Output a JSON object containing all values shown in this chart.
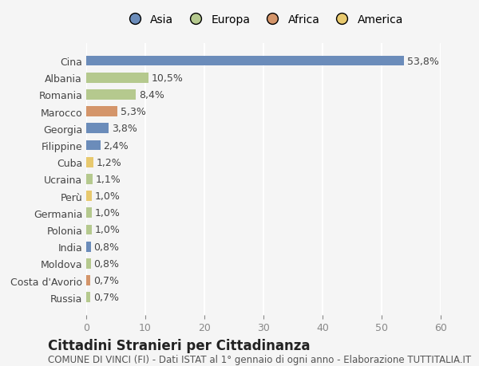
{
  "countries": [
    "Cina",
    "Albania",
    "Romania",
    "Marocco",
    "Georgia",
    "Filippine",
    "Cuba",
    "Ucraina",
    "Perù",
    "Germania",
    "Polonia",
    "India",
    "Moldova",
    "Costa d'Avorio",
    "Russia"
  ],
  "values": [
    53.8,
    10.5,
    8.4,
    5.3,
    3.8,
    2.4,
    1.2,
    1.1,
    1.0,
    1.0,
    1.0,
    0.8,
    0.8,
    0.7,
    0.7
  ],
  "labels": [
    "53,8%",
    "10,5%",
    "8,4%",
    "5,3%",
    "3,8%",
    "2,4%",
    "1,2%",
    "1,1%",
    "1,0%",
    "1,0%",
    "1,0%",
    "0,8%",
    "0,8%",
    "0,7%",
    "0,7%"
  ],
  "continents": [
    "Asia",
    "Europa",
    "Europa",
    "Africa",
    "Asia",
    "Asia",
    "America",
    "Europa",
    "America",
    "Europa",
    "Europa",
    "Asia",
    "Europa",
    "Africa",
    "Europa"
  ],
  "continent_colors": {
    "Asia": "#6b8cba",
    "Europa": "#b5c98e",
    "Africa": "#d4956a",
    "America": "#e8c96e"
  },
  "legend_order": [
    "Asia",
    "Europa",
    "Africa",
    "America"
  ],
  "xlim": [
    0,
    60
  ],
  "xticks": [
    0,
    10,
    20,
    30,
    40,
    50,
    60
  ],
  "title": "Cittadini Stranieri per Cittadinanza",
  "subtitle": "COMUNE DI VINCI (FI) - Dati ISTAT al 1° gennaio di ogni anno - Elaborazione TUTTITALIA.IT",
  "background_color": "#f5f5f5",
  "grid_color": "#ffffff",
  "bar_height": 0.6,
  "title_fontsize": 12,
  "subtitle_fontsize": 8.5,
  "label_fontsize": 9,
  "tick_fontsize": 9,
  "legend_fontsize": 10
}
